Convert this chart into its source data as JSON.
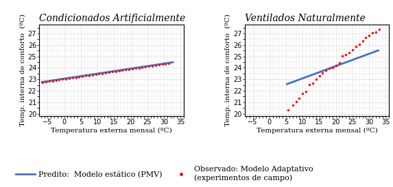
{
  "left_title": "Condicionados Artificialmente",
  "right_title": "Ventilados Naturalmente",
  "xlabel": "Temperatura externa mensal (ºC)",
  "ylabel": "Temp. interna de conforto  (ºC)",
  "xlim": [
    -7.5,
    36
  ],
  "ylim": [
    19.8,
    27.8
  ],
  "xticks": [
    -5,
    0,
    5,
    10,
    15,
    20,
    25,
    30,
    35
  ],
  "yticks": [
    20,
    21,
    22,
    23,
    24,
    25,
    26,
    27
  ],
  "left_line": {
    "x_start": -7,
    "x_end": 33,
    "y_start": 22.75,
    "y_end": 24.5
  },
  "left_dots_x": [
    -6.5,
    -5.5,
    -4.5,
    -3.5,
    -2.5,
    -1.5,
    -0.5,
    0.5,
    1.5,
    2.5,
    3.5,
    4.5,
    5.5,
    6.5,
    7.5,
    8.5,
    9.5,
    10.5,
    11.5,
    12.5,
    13.5,
    14.5,
    15.5,
    16.5,
    17.5,
    18.5,
    19.5,
    20.5,
    21.5,
    22.5,
    23.5,
    24.5,
    25.5,
    26.5,
    27.5,
    28.5,
    29.5,
    30.5,
    31.5
  ],
  "right_line": {
    "x_start": 5,
    "x_end": 33,
    "y_start": 22.55,
    "y_end": 25.55
  },
  "right_dots_x": [
    5.5,
    7,
    8,
    9,
    10,
    11,
    12,
    13,
    14,
    15,
    16,
    17,
    18,
    19,
    20,
    21,
    22,
    23,
    24,
    25,
    26,
    27,
    28,
    29,
    30,
    31,
    32,
    33
  ],
  "right_dots_y": [
    20.35,
    20.75,
    21.05,
    21.35,
    21.75,
    21.95,
    22.55,
    22.65,
    23.0,
    23.3,
    23.55,
    23.8,
    23.95,
    24.05,
    24.2,
    24.45,
    25.05,
    25.15,
    25.35,
    25.6,
    25.85,
    26.05,
    26.35,
    26.65,
    26.8,
    27.05,
    27.15,
    27.35
  ],
  "line_color": "#4472C4",
  "dot_color": "#FF0000",
  "bg_color": "#FFFFFF",
  "plot_bg_color": "#FFFFFF",
  "grid_color": "#AAAAAA",
  "title_fontsize": 10,
  "axis_fontsize": 7.5,
  "tick_fontsize": 7,
  "legend_fontsize": 8,
  "legend_label_line": "Predito:  Modelo estático (PMV)",
  "legend_label_dots": "Observado: Modelo Adaptativo\n(experimentos de campo)"
}
